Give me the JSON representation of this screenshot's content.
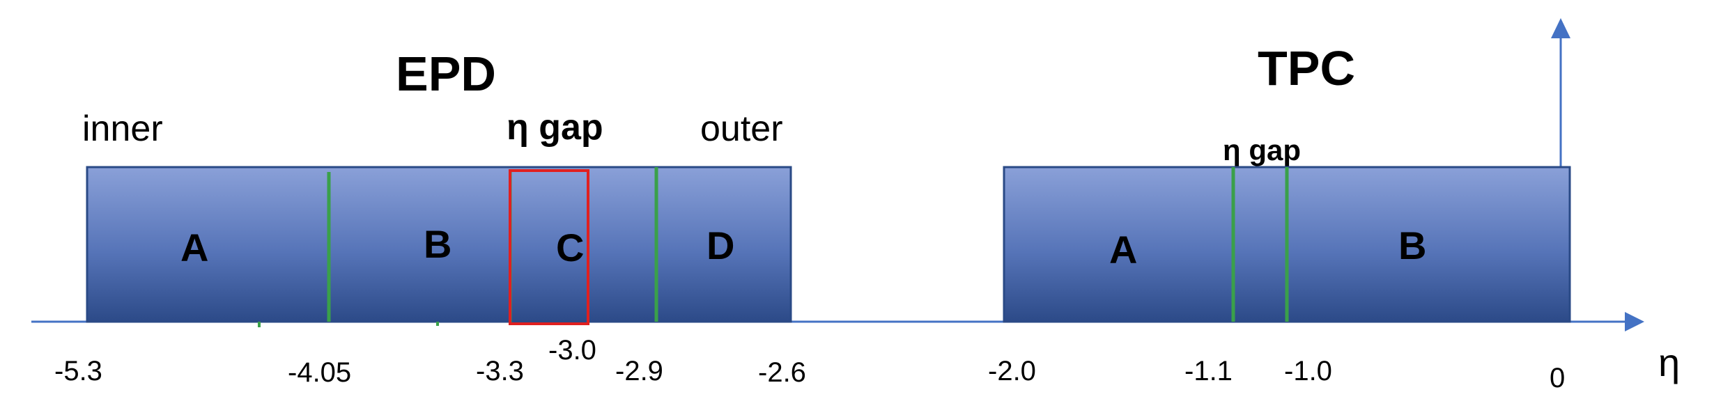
{
  "epd": {
    "title": "EPD",
    "inner_label": "inner",
    "outer_label": "outer",
    "gap_label": "η gap",
    "segments": [
      "A",
      "B",
      "C",
      "D"
    ]
  },
  "tpc": {
    "title": "TPC",
    "gap_label": "η gap",
    "segments": [
      "A",
      "B"
    ]
  },
  "axis": {
    "symbol": "η",
    "ticks": [
      "-5.3",
      "-4.05",
      "-3.3",
      "-3.0",
      "-2.9",
      "-2.6",
      "-2.0",
      "-1.1",
      "-1.0",
      "0"
    ]
  },
  "colors": {
    "bar_top": "#8a9fd6",
    "bar_bottom": "#2e4c8a",
    "divider": "#3aa04a",
    "gap_highlight": "#e02020",
    "axis": "#4472c4"
  }
}
